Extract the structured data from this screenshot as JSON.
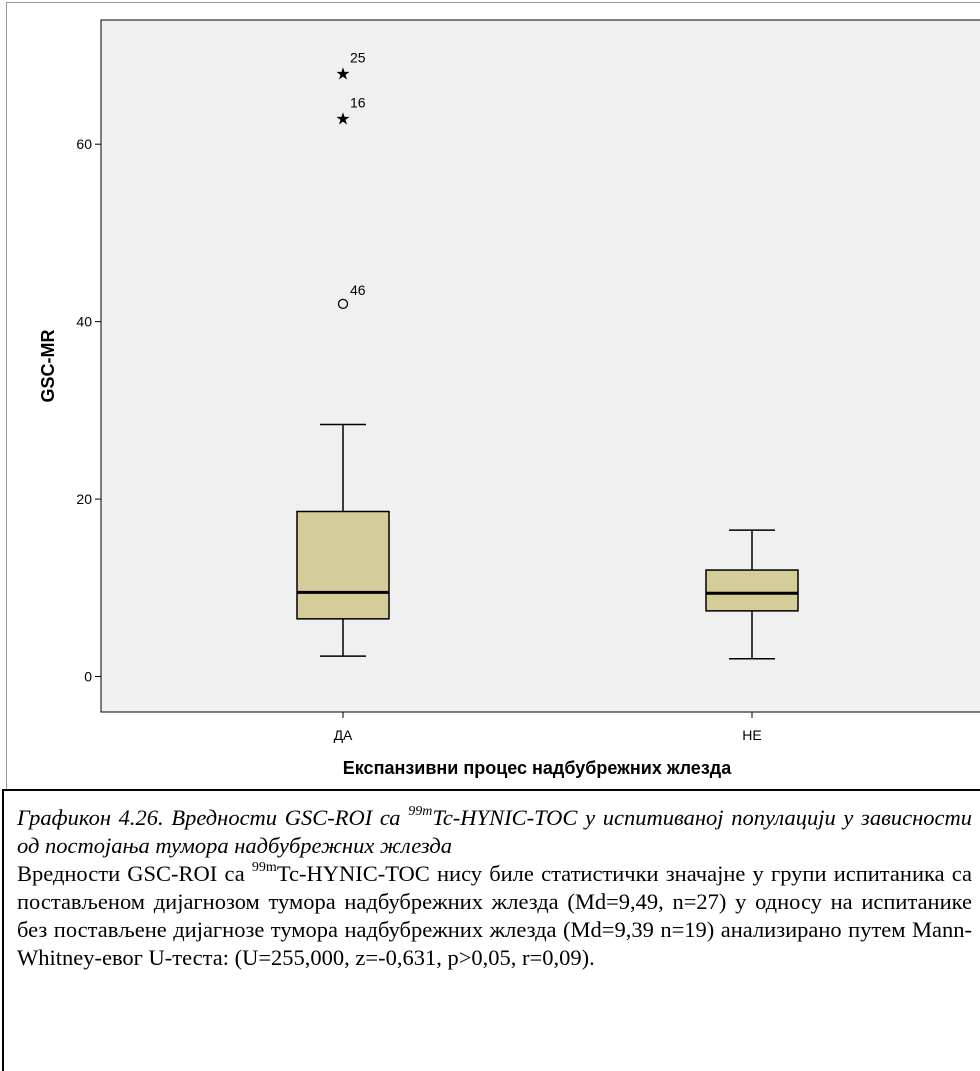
{
  "chart_data": {
    "type": "boxplot",
    "xlabel": "Експанзивни процес надбубрежних жлезда",
    "ylabel": "GSC-MR",
    "ylim": [
      -4,
      74
    ],
    "yticks": [
      0,
      20,
      40,
      60
    ],
    "grid": false,
    "colors": {
      "plot_bg": "#f0f0f0",
      "box_fill": "#d4cc99",
      "stroke": "#000000"
    },
    "groups": [
      {
        "category": "ДА",
        "whisker_low": 2.3,
        "q1": 6.5,
        "median": 9.49,
        "q3": 18.6,
        "whisker_high": 28.4,
        "outliers": [
          {
            "value": 42.0,
            "label": "46",
            "marker": "circle"
          },
          {
            "value": 63.1,
            "label": "16",
            "marker": "star"
          },
          {
            "value": 68.2,
            "label": "25",
            "marker": "star"
          }
        ]
      },
      {
        "category": "НЕ",
        "whisker_low": 2.0,
        "q1": 7.4,
        "median": 9.39,
        "q3": 12.0,
        "whisker_high": 16.5,
        "outliers": []
      }
    ]
  },
  "caption": {
    "title_pre": "Графикон 4.26. Вредности GSC-ROI са ",
    "title_sup": "99m",
    "title_post": "Tc-HYNIC-TOC у испитиваној популацији у зависности од постојања тумора надбубрежних жлезда",
    "body_pre": "Вредности GSC-ROI са ",
    "body_sup": "99m",
    "body_post": "Tc-HYNIC-TOC нису биле статистички значајне у групи испитаника са постављеном дијагнозом тумора надбубрежних жлезда (Md=9,49, n=27) у односу на испитанике без постављене дијагнозе тумора надбубрежних жлезда (Md=9,39 n=19) анализирано путем Mann-Whitney-евог U-теста: (U=255,000, z=-0,631, p>0,05, r=0,09)."
  }
}
